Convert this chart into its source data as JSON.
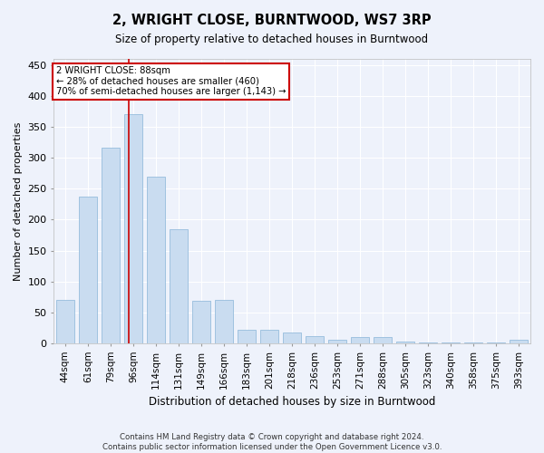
{
  "title": "2, WRIGHT CLOSE, BURNTWOOD, WS7 3RP",
  "subtitle": "Size of property relative to detached houses in Burntwood",
  "xlabel": "Distribution of detached houses by size in Burntwood",
  "ylabel": "Number of detached properties",
  "categories": [
    "44sqm",
    "61sqm",
    "79sqm",
    "96sqm",
    "114sqm",
    "131sqm",
    "149sqm",
    "166sqm",
    "183sqm",
    "201sqm",
    "218sqm",
    "236sqm",
    "253sqm",
    "271sqm",
    "288sqm",
    "305sqm",
    "323sqm",
    "340sqm",
    "358sqm",
    "375sqm",
    "393sqm"
  ],
  "values": [
    70,
    237,
    317,
    370,
    270,
    185,
    68,
    70,
    22,
    22,
    17,
    11,
    6,
    10,
    10,
    3,
    2,
    2,
    2,
    1,
    5
  ],
  "bar_color": "#c9dcf0",
  "bar_edgecolor": "#88b4d8",
  "property_line_x": 2.82,
  "annotation_text": "2 WRIGHT CLOSE: 88sqm\n← 28% of detached houses are smaller (460)\n70% of semi-detached houses are larger (1,143) →",
  "annotation_box_color": "#ffffff",
  "annotation_box_edgecolor": "#cc0000",
  "vline_color": "#cc0000",
  "background_color": "#eef2fb",
  "grid_color": "#ffffff",
  "ylim": [
    0,
    460
  ],
  "yticks": [
    0,
    50,
    100,
    150,
    200,
    250,
    300,
    350,
    400,
    450
  ],
  "footer": "Contains HM Land Registry data © Crown copyright and database right 2024.\nContains public sector information licensed under the Open Government Licence v3.0."
}
